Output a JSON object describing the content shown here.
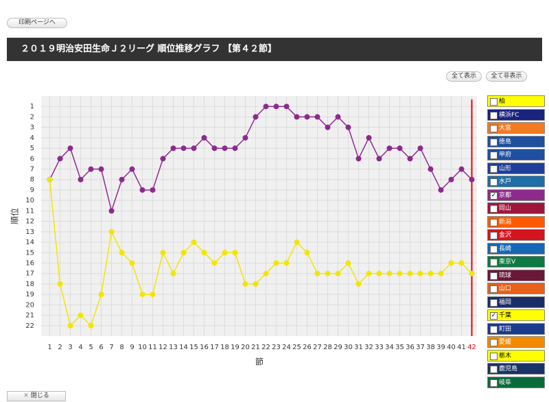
{
  "header": {
    "print_button": "印刷ページへ",
    "title": "２０１９明治安田生命Ｊ２リーグ 順位推移グラフ 【第４２節】"
  },
  "buttons": {
    "show_all": "全て表示",
    "hide_all": "全て非表示"
  },
  "chart_data": {
    "type": "line",
    "y_label": "順位",
    "x_label": "節",
    "categories": [
      "1",
      "2",
      "3",
      "4",
      "5",
      "6",
      "7",
      "8",
      "9",
      "10",
      "11",
      "12",
      "13",
      "14",
      "15",
      "16",
      "17",
      "18",
      "19",
      "20",
      "21",
      "22",
      "23",
      "24",
      "25",
      "26",
      "27",
      "28",
      "29",
      "30",
      "31",
      "32",
      "33",
      "34",
      "35",
      "36",
      "37",
      "38",
      "39",
      "40",
      "41",
      "42"
    ],
    "ylim": [
      0,
      23
    ],
    "y_reversed": true,
    "yticks": [
      1,
      2,
      3,
      4,
      5,
      6,
      7,
      8,
      9,
      10,
      11,
      12,
      13,
      14,
      15,
      16,
      17,
      18,
      19,
      20,
      21,
      22
    ],
    "grid": true,
    "series": [
      {
        "color": "#8e2a8e",
        "values": [
          8,
          6,
          5,
          8,
          7,
          7,
          11,
          8,
          7,
          9,
          9,
          6,
          5,
          5,
          5,
          4,
          5,
          5,
          5,
          4,
          2,
          1,
          1,
          1,
          2,
          2,
          2,
          3,
          2,
          3,
          6,
          4,
          6,
          5,
          5,
          6,
          5,
          7,
          9,
          8,
          7,
          8
        ]
      },
      {
        "color": "#f2e600",
        "values": [
          8,
          18,
          22,
          21,
          22,
          19,
          13,
          15,
          16,
          19,
          19,
          15,
          17,
          15,
          14,
          15,
          16,
          15,
          15,
          18,
          18,
          17,
          16,
          16,
          14,
          15,
          17,
          17,
          17,
          16,
          18,
          17,
          17,
          17,
          17,
          17,
          17,
          17,
          17,
          16,
          16,
          17
        ]
      }
    ],
    "legend": [
      {
        "name": "柏",
        "color": "#ffff00",
        "checked": false
      },
      {
        "name": "横浜FC",
        "color": "#1a237e",
        "checked": false
      },
      {
        "name": "大宮",
        "color": "#f47920",
        "checked": false
      },
      {
        "name": "徳島",
        "color": "#1e4fa0",
        "checked": false
      },
      {
        "name": "甲府",
        "color": "#1e4fa0",
        "checked": false
      },
      {
        "name": "山形",
        "color": "#1f3f99",
        "checked": false
      },
      {
        "name": "水戸",
        "color": "#1f6ea8",
        "checked": false
      },
      {
        "name": "京都",
        "color": "#8e2a8e",
        "checked": true
      },
      {
        "name": "岡山",
        "color": "#a0163a",
        "checked": false
      },
      {
        "name": "新潟",
        "color": "#ff5a00",
        "checked": false
      },
      {
        "name": "金沢",
        "color": "#d4141e",
        "checked": false
      },
      {
        "name": "長崎",
        "color": "#1668b4",
        "checked": false
      },
      {
        "name": "東京V",
        "color": "#0f7a43",
        "checked": false
      },
      {
        "name": "琉球",
        "color": "#6b1737",
        "checked": false
      },
      {
        "name": "山口",
        "color": "#e8611a",
        "checked": false
      },
      {
        "name": "福岡",
        "color": "#1b2d66",
        "checked": false
      },
      {
        "name": "千葉",
        "color": "#ffff00",
        "checked": true
      },
      {
        "name": "町田",
        "color": "#1a3a8c",
        "checked": false
      },
      {
        "name": "愛媛",
        "color": "#f28b00",
        "checked": false
      },
      {
        "name": "栃木",
        "color": "#ffff00",
        "checked": false
      },
      {
        "name": "鹿児島",
        "color": "#1a3366",
        "checked": false
      },
      {
        "name": "岐阜",
        "color": "#0a6b3a",
        "checked": false
      }
    ]
  },
  "footer": {
    "close": "閉じる"
  }
}
